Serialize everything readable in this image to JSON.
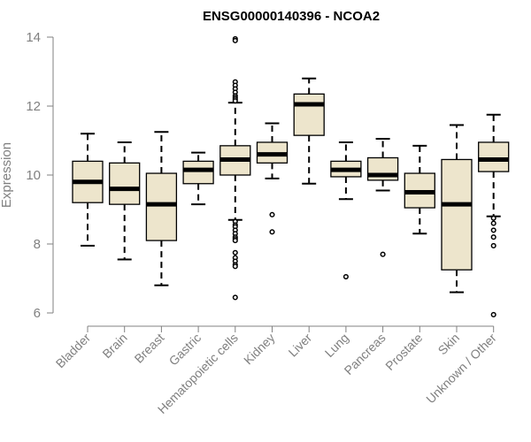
{
  "chart_data": {
    "type": "box",
    "title": "ENSG00000140396 - NCOA2",
    "ylabel": "Expression",
    "xlabel": "",
    "ylim": [
      6,
      14
    ],
    "yticks": [
      6,
      8,
      10,
      12,
      14
    ],
    "grid": false,
    "colors": {
      "box_fill": "#ede5cc",
      "stroke": "#000000",
      "axis": "#808080",
      "title": "#000000"
    },
    "categories": [
      "Bladder",
      "Brain",
      "Breast",
      "Gastric",
      "Hematopoietic cells",
      "Kidney",
      "Liver",
      "Lung",
      "Pancreas",
      "Prostate",
      "Skin",
      "Unknown / Other"
    ],
    "boxes": [
      {
        "category": "Bladder",
        "whisker_low": 7.95,
        "q1": 9.2,
        "median": 9.8,
        "q3": 10.4,
        "whisker_high": 11.2,
        "outliers": []
      },
      {
        "category": "Brain",
        "whisker_low": 7.55,
        "q1": 9.15,
        "median": 9.6,
        "q3": 10.35,
        "whisker_high": 10.95,
        "outliers": []
      },
      {
        "category": "Breast",
        "whisker_low": 6.8,
        "q1": 8.1,
        "median": 9.15,
        "q3": 10.05,
        "whisker_high": 11.25,
        "outliers": []
      },
      {
        "category": "Gastric",
        "whisker_low": 9.15,
        "q1": 9.75,
        "median": 10.15,
        "q3": 10.4,
        "whisker_high": 10.65,
        "outliers": []
      },
      {
        "category": "Hematopoietic cells",
        "whisker_low": 8.7,
        "q1": 10.0,
        "median": 10.45,
        "q3": 10.85,
        "whisker_high": 12.1,
        "outliers": [
          13.95,
          13.9,
          12.7,
          12.6,
          12.5,
          12.4,
          12.3,
          12.25,
          12.2,
          12.15,
          8.65,
          8.55,
          8.5,
          8.4,
          8.3,
          8.2,
          8.15,
          8.1,
          7.75,
          7.6,
          7.5,
          7.4,
          7.35,
          6.45
        ]
      },
      {
        "category": "Kidney",
        "whisker_low": 9.9,
        "q1": 10.35,
        "median": 10.6,
        "q3": 10.95,
        "whisker_high": 11.5,
        "outliers": [
          8.85,
          8.35
        ]
      },
      {
        "category": "Liver",
        "whisker_low": 9.75,
        "q1": 11.15,
        "median": 12.05,
        "q3": 12.35,
        "whisker_high": 12.8,
        "outliers": []
      },
      {
        "category": "Lung",
        "whisker_low": 9.3,
        "q1": 9.95,
        "median": 10.15,
        "q3": 10.4,
        "whisker_high": 10.95,
        "outliers": [
          7.05
        ]
      },
      {
        "category": "Pancreas",
        "whisker_low": 9.55,
        "q1": 9.85,
        "median": 10.0,
        "q3": 10.5,
        "whisker_high": 11.05,
        "outliers": [
          7.7
        ]
      },
      {
        "category": "Prostate",
        "whisker_low": 8.3,
        "q1": 9.05,
        "median": 9.5,
        "q3": 10.05,
        "whisker_high": 10.85,
        "outliers": []
      },
      {
        "category": "Skin",
        "whisker_low": 6.6,
        "q1": 7.25,
        "median": 9.15,
        "q3": 10.45,
        "whisker_high": 11.45,
        "outliers": []
      },
      {
        "category": "Unknown / Other",
        "whisker_low": 8.8,
        "q1": 10.1,
        "median": 10.45,
        "q3": 10.95,
        "whisker_high": 11.75,
        "outliers": [
          8.75,
          8.6,
          8.4,
          8.2,
          7.95,
          5.95
        ]
      }
    ]
  }
}
